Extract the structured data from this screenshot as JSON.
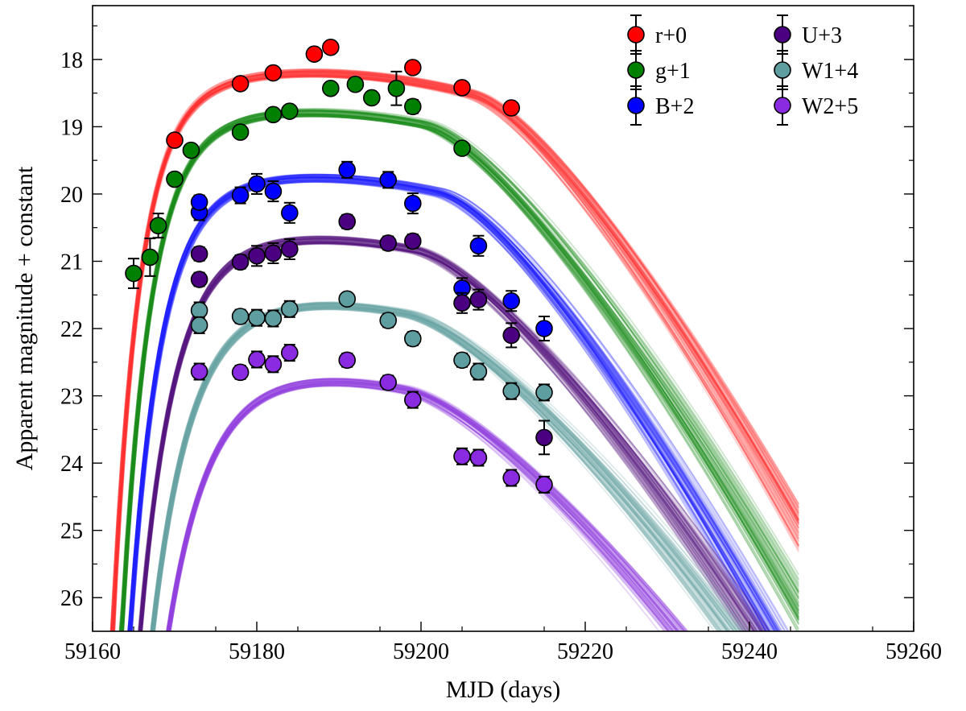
{
  "chart_data": {
    "type": "scatter",
    "title": "",
    "xlabel": "MJD (days)",
    "ylabel": "Apparent magnitude + constant",
    "xlim": [
      59160,
      59260
    ],
    "ylim": [
      26.5,
      17.2
    ],
    "y_inverted": true,
    "xticks": [
      59160,
      59180,
      59200,
      59220,
      59240,
      59260
    ],
    "yticks": [
      18,
      19,
      20,
      21,
      22,
      23,
      24,
      25,
      26
    ],
    "model_end_mjd": 59246,
    "legend_position": "top-right",
    "series": [
      {
        "name": "r+0",
        "color": "#ff0000",
        "curve_color": "#ff3030",
        "points": [
          [
            59170,
            19.2,
            0.06
          ],
          [
            59178,
            18.36,
            0.06
          ],
          [
            59182,
            18.2,
            0.06
          ],
          [
            59187,
            17.92,
            0.06
          ],
          [
            59189,
            17.82,
            0.06
          ],
          [
            59199,
            18.12,
            0.06
          ],
          [
            59205,
            18.42,
            0.06
          ],
          [
            59211,
            18.72,
            0.06
          ]
        ],
        "model": {
          "t0": 59162.0,
          "rise_tau": 3.2,
          "floor_offset": 9.5,
          "peak_mjd": 59186,
          "peak_mag": 18.2,
          "decline_start_mjd": 59206,
          "decline_rate": 0.129,
          "end_spread": 0.5
        }
      },
      {
        "name": "g+1",
        "color": "#008000",
        "curve_color": "#1a8c1a",
        "points": [
          [
            59165,
            21.18,
            0.22
          ],
          [
            59167,
            20.94,
            0.28
          ],
          [
            59168,
            20.47,
            0.18
          ],
          [
            59170,
            19.78,
            0.08
          ],
          [
            59172,
            19.35,
            0.08
          ],
          [
            59178,
            19.08,
            0.08
          ],
          [
            59182,
            18.82,
            0.06
          ],
          [
            59184,
            18.77,
            0.06
          ],
          [
            59189,
            18.43,
            0.06
          ],
          [
            59192,
            18.37,
            0.08
          ],
          [
            59194,
            18.57,
            0.08
          ],
          [
            59197,
            18.43,
            0.25
          ],
          [
            59199,
            18.7,
            0.1
          ],
          [
            59205,
            19.32,
            0.08
          ]
        ],
        "model": {
          "t0": 59163.0,
          "rise_tau": 3.4,
          "floor_offset": 9.0,
          "peak_mjd": 59185,
          "peak_mag": 18.78,
          "decline_start_mjd": 59200,
          "decline_rate": 0.123,
          "end_spread": 0.5
        }
      },
      {
        "name": "B+2",
        "color": "#0000ff",
        "curve_color": "#2020ff",
        "points": [
          [
            59173,
            20.27,
            0.12
          ],
          [
            59173,
            20.12,
            0.1
          ],
          [
            59178,
            20.02,
            0.12
          ],
          [
            59180,
            19.85,
            0.15
          ],
          [
            59182,
            19.96,
            0.15
          ],
          [
            59184,
            20.28,
            0.15
          ],
          [
            59191,
            19.64,
            0.12
          ],
          [
            59196,
            19.79,
            0.12
          ],
          [
            59199,
            20.14,
            0.15
          ],
          [
            59205,
            21.4,
            0.15
          ],
          [
            59207,
            20.77,
            0.15
          ],
          [
            59211,
            21.59,
            0.15
          ],
          [
            59215,
            22.0,
            0.18
          ]
        ],
        "model": {
          "t0": 59163.5,
          "rise_tau": 3.6,
          "floor_offset": 9.0,
          "peak_mjd": 59185,
          "peak_mag": 19.75,
          "decline_start_mjd": 59202,
          "decline_rate": 0.133,
          "end_spread": 0.5
        }
      },
      {
        "name": "U+3",
        "color": "#4b0082",
        "curve_color": "#55167f",
        "points": [
          [
            59173,
            21.27,
            0.1
          ],
          [
            59173,
            20.89,
            0.1
          ],
          [
            59178,
            21.01,
            0.1
          ],
          [
            59180,
            20.92,
            0.15
          ],
          [
            59182,
            20.88,
            0.15
          ],
          [
            59184,
            20.82,
            0.15
          ],
          [
            59191,
            20.41,
            0.1
          ],
          [
            59196,
            20.73,
            0.1
          ],
          [
            59199,
            20.7,
            0.1
          ],
          [
            59205,
            21.62,
            0.15
          ],
          [
            59207,
            21.57,
            0.15
          ],
          [
            59211,
            22.1,
            0.18
          ],
          [
            59215,
            23.62,
            0.25
          ]
        ],
        "model": {
          "t0": 59164.0,
          "rise_tau": 4.0,
          "floor_offset": 9.0,
          "peak_mjd": 59184,
          "peak_mag": 20.65,
          "decline_start_mjd": 59199,
          "decline_rate": 0.105,
          "end_spread": 0.4
        }
      },
      {
        "name": "W1+4",
        "color": "#5f9ea0",
        "curve_color": "#6aa6a6",
        "points": [
          [
            59173,
            21.73,
            0.12
          ],
          [
            59173,
            21.95,
            0.12
          ],
          [
            59178,
            21.82,
            0.1
          ],
          [
            59180,
            21.84,
            0.12
          ],
          [
            59182,
            21.85,
            0.12
          ],
          [
            59184,
            21.71,
            0.12
          ],
          [
            59191,
            21.56,
            0.08
          ],
          [
            59196,
            21.88,
            0.1
          ],
          [
            59199,
            22.15,
            0.1
          ],
          [
            59205,
            22.47,
            0.1
          ],
          [
            59207,
            22.64,
            0.12
          ],
          [
            59211,
            22.93,
            0.12
          ],
          [
            59215,
            22.95,
            0.12
          ]
        ],
        "model": {
          "t0": 59164.5,
          "rise_tau": 4.5,
          "floor_offset": 9.0,
          "peak_mjd": 59183,
          "peak_mag": 21.6,
          "decline_start_mjd": 59198,
          "decline_rate": 0.085,
          "end_spread": 0.45
        }
      },
      {
        "name": "W2+5",
        "color": "#8a2be2",
        "curve_color": "#9340e0",
        "points": [
          [
            59173,
            22.64,
            0.12
          ],
          [
            59178,
            22.65,
            0.1
          ],
          [
            59180,
            22.46,
            0.12
          ],
          [
            59182,
            22.53,
            0.12
          ],
          [
            59184,
            22.36,
            0.12
          ],
          [
            59191,
            22.47,
            0.1
          ],
          [
            59196,
            22.8,
            0.1
          ],
          [
            59199,
            23.06,
            0.12
          ],
          [
            59205,
            23.9,
            0.12
          ],
          [
            59207,
            23.92,
            0.12
          ],
          [
            59211,
            24.22,
            0.12
          ],
          [
            59215,
            24.32,
            0.12
          ]
        ],
        "model": {
          "t0": 59165.0,
          "rise_tau": 4.8,
          "floor_offset": 9.0,
          "peak_mjd": 59182,
          "peak_mag": 22.7,
          "decline_start_mjd": 59198,
          "decline_rate": 0.08,
          "end_spread": 0.45
        }
      }
    ]
  }
}
